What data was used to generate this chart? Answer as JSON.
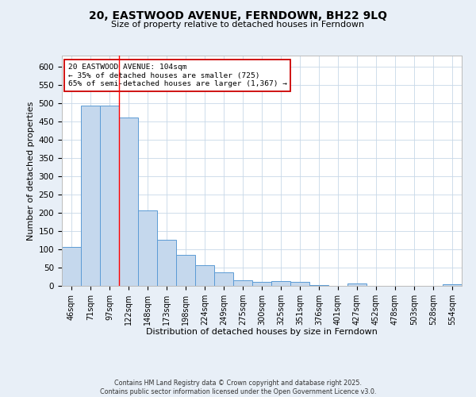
{
  "title": "20, EASTWOOD AVENUE, FERNDOWN, BH22 9LQ",
  "subtitle": "Size of property relative to detached houses in Ferndown",
  "xlabel": "Distribution of detached houses by size in Ferndown",
  "ylabel": "Number of detached properties",
  "categories": [
    "46sqm",
    "71sqm",
    "97sqm",
    "122sqm",
    "148sqm",
    "173sqm",
    "198sqm",
    "224sqm",
    "249sqm",
    "275sqm",
    "300sqm",
    "325sqm",
    "351sqm",
    "376sqm",
    "401sqm",
    "427sqm",
    "452sqm",
    "478sqm",
    "503sqm",
    "528sqm",
    "554sqm"
  ],
  "values": [
    107,
    493,
    493,
    460,
    207,
    125,
    84,
    57,
    38,
    15,
    10,
    12,
    10,
    2,
    1,
    7,
    1,
    1,
    1,
    1,
    5
  ],
  "bar_color": "#c5d8ed",
  "bar_edge_color": "#5b9bd5",
  "red_line_x": 2.5,
  "annotation_text": "20 EASTWOOD AVENUE: 104sqm\n← 35% of detached houses are smaller (725)\n65% of semi-detached houses are larger (1,367) →",
  "annotation_box_color": "#ffffff",
  "annotation_box_edge": "#cc0000",
  "ylim": [
    0,
    630
  ],
  "yticks": [
    0,
    50,
    100,
    150,
    200,
    250,
    300,
    350,
    400,
    450,
    500,
    550,
    600
  ],
  "footer": "Contains HM Land Registry data © Crown copyright and database right 2025.\nContains public sector information licensed under the Open Government Licence v3.0.",
  "bg_color": "#e8eff7",
  "plot_bg_color": "#ffffff",
  "grid_color": "#c8d8e8"
}
